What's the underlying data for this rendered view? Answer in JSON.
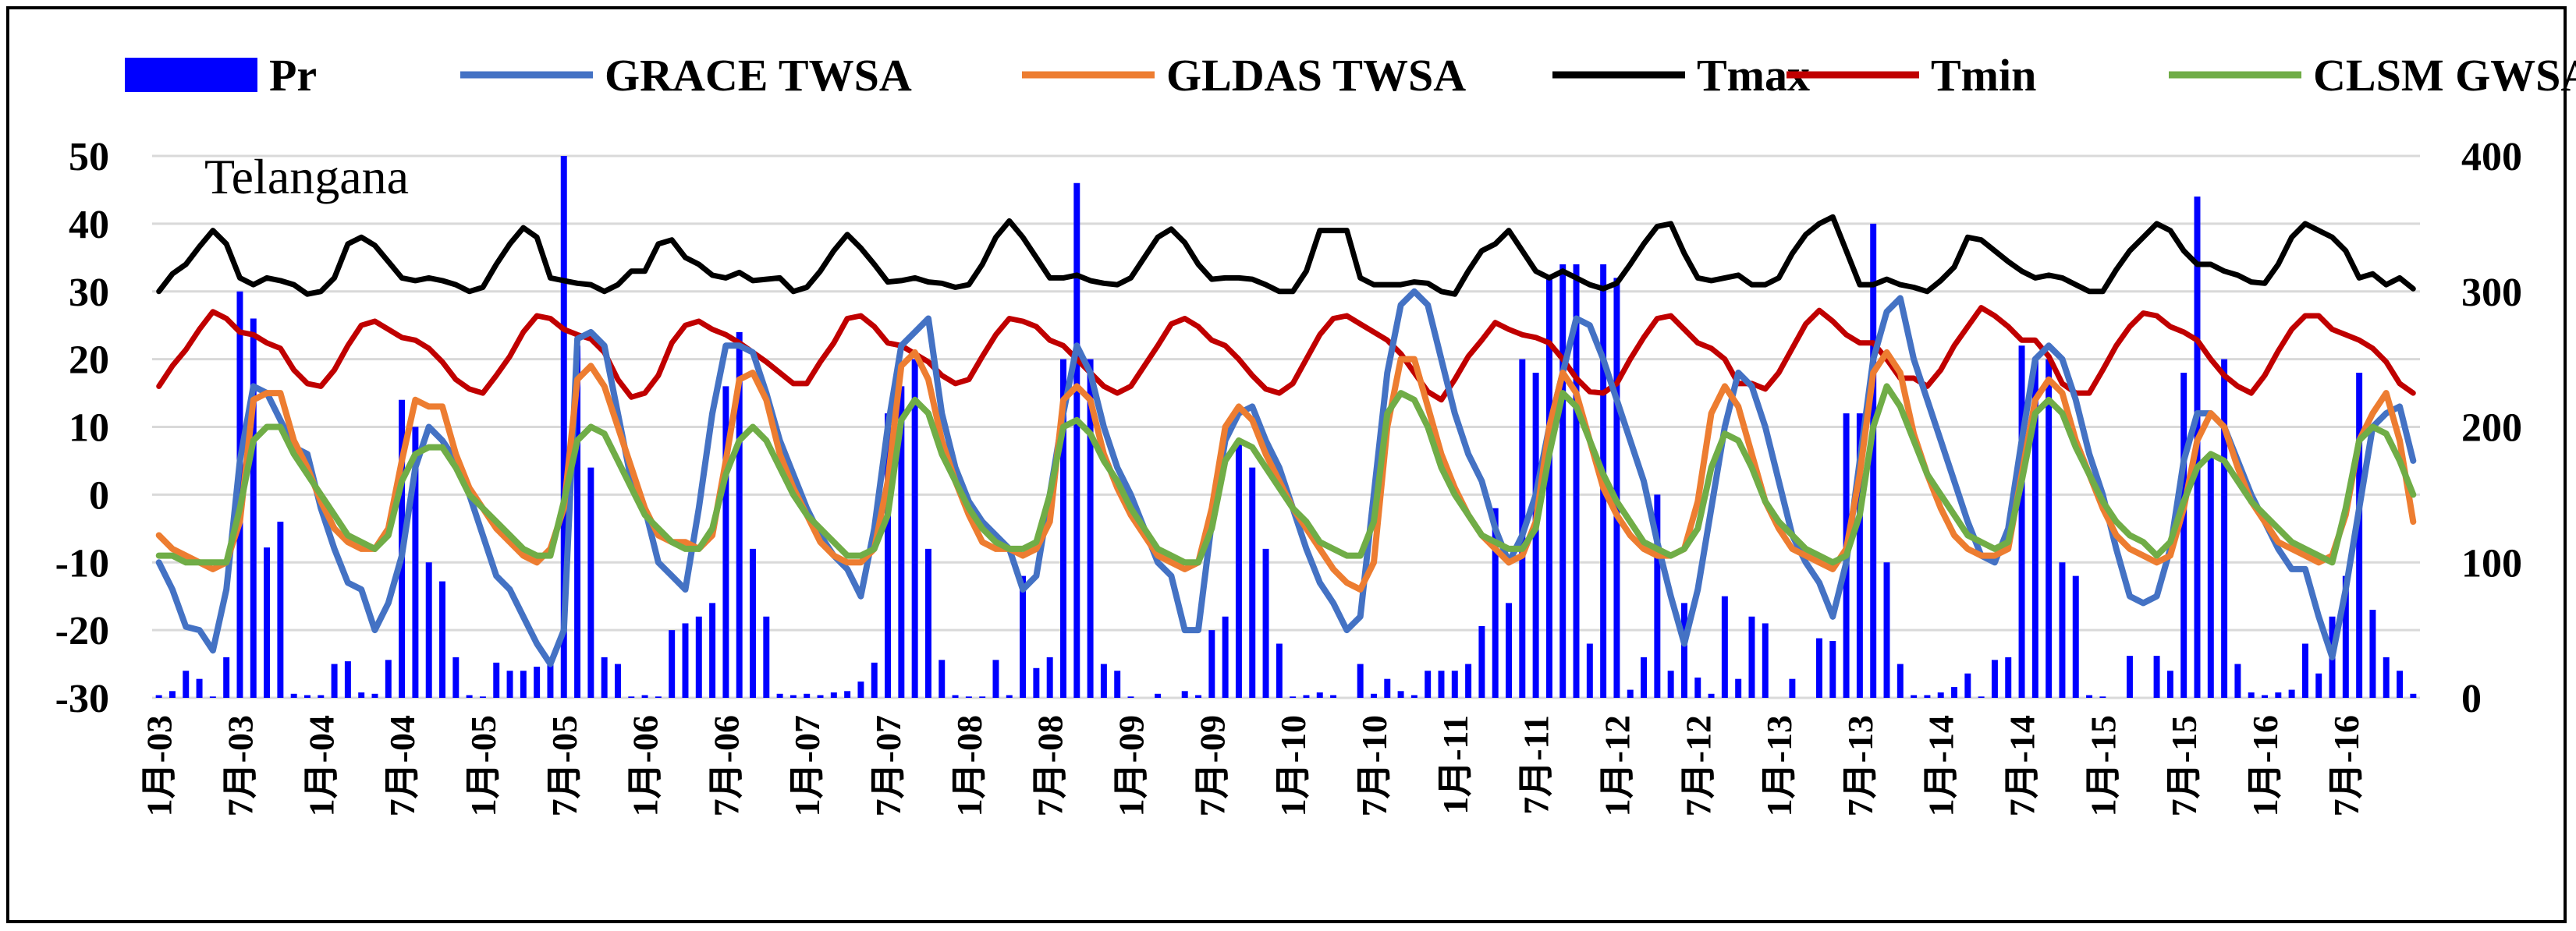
{
  "chart_data": {
    "type": "combo-bar-line",
    "title": "Telangana",
    "legend": {
      "position": "top",
      "entries": [
        {
          "key": "pr",
          "label": "Pr",
          "kind": "bar",
          "color": "#0000ff"
        },
        {
          "key": "grace",
          "label": "GRACE TWSA",
          "kind": "line",
          "color": "#4472c4"
        },
        {
          "key": "gldas",
          "label": "GLDAS TWSA",
          "kind": "line",
          "color": "#ed7d31"
        },
        {
          "key": "tmax",
          "label": "Tmax",
          "kind": "line",
          "color": "#000000"
        },
        {
          "key": "tmin",
          "label": "Tmin",
          "kind": "line",
          "color": "#c00000"
        },
        {
          "key": "clsm",
          "label": "CLSM GWSA",
          "kind": "line",
          "color": "#70ad47"
        }
      ]
    },
    "y_left": {
      "min": -30,
      "max": 50,
      "ticks": [
        "50",
        "40",
        "30",
        "20",
        "10",
        "0",
        "-10",
        "-20",
        "-30"
      ],
      "grid": true
    },
    "y_right": {
      "min": 0,
      "max": 400,
      "ticks": [
        "400",
        "300",
        "200",
        "100",
        "0"
      ]
    },
    "x_tick_labels": [
      "1月-03",
      "7月-03",
      "1月-04",
      "7月-04",
      "1月-05",
      "7月-05",
      "1月-06",
      "7月-06",
      "1月-07",
      "7月-07",
      "1月-08",
      "7月-08",
      "1月-09",
      "7月-09",
      "1月-10",
      "7月-10",
      "1月-11",
      "7月-11",
      "1月-12",
      "7月-12",
      "1月-13",
      "7月-13",
      "1月-14",
      "7月-14",
      "1月-15",
      "7月-15",
      "1月-16",
      "7月-16"
    ],
    "n_months": 168,
    "start_month": "2003-01",
    "series": {
      "pr": [
        2,
        5,
        20,
        14,
        1,
        30,
        300,
        280,
        111,
        130,
        3,
        2,
        2,
        25,
        27,
        4,
        3,
        28,
        220,
        200,
        100,
        86,
        30,
        2,
        1,
        26,
        20,
        20,
        23,
        30,
        400,
        260,
        170,
        30,
        25,
        1,
        2,
        1,
        50,
        55,
        60,
        70,
        230,
        270,
        110,
        60,
        3,
        2,
        3,
        2,
        4,
        5,
        12,
        26,
        210,
        230,
        250,
        110,
        28,
        2,
        1,
        1,
        28,
        2,
        90,
        22,
        30,
        250,
        380,
        250,
        25,
        20,
        1,
        0,
        3,
        0,
        5,
        2,
        50,
        60,
        190,
        170,
        110,
        40,
        1,
        2,
        4,
        2,
        0,
        25,
        3,
        14,
        5,
        2,
        20,
        20,
        20,
        25,
        53,
        140,
        70,
        250,
        240,
        310,
        320,
        320,
        40,
        320,
        310,
        6,
        30,
        150,
        20,
        70,
        15,
        3,
        75,
        14,
        60,
        55,
        0,
        14,
        0,
        44,
        42,
        210,
        210,
        350,
        100,
        25,
        2,
        2,
        4,
        8,
        18,
        1,
        28,
        30,
        260,
        250,
        250,
        100,
        90,
        2,
        1,
        0,
        31,
        0,
        31,
        20,
        240,
        370,
        180,
        250,
        25,
        4,
        2,
        4,
        6,
        40,
        18,
        60,
        90,
        240,
        65,
        30,
        20,
        3
      ],
      "grace": [
        -10,
        -14,
        -19.5,
        -20,
        -23,
        -14,
        5,
        16,
        15,
        11,
        7,
        6,
        -2,
        -8,
        -13,
        -14,
        -20,
        -16,
        -9,
        4,
        10,
        8,
        5,
        0,
        -6,
        -12,
        -14,
        -18,
        -22,
        -25,
        -20,
        23,
        24,
        22,
        12,
        2,
        -2,
        -10,
        -12,
        -14,
        -2,
        12,
        22,
        22,
        21,
        15,
        8,
        3,
        -2,
        -6,
        -9,
        -11,
        -15,
        -5,
        10,
        22,
        24,
        26,
        12,
        4,
        -1,
        -4,
        -6,
        -8,
        -14,
        -12,
        0,
        12,
        22,
        18,
        10,
        4,
        0,
        -5,
        -10,
        -12,
        -20,
        -20,
        -4,
        8,
        12,
        13,
        8,
        4,
        -2,
        -8,
        -13,
        -16,
        -20,
        -18,
        0,
        18,
        28,
        30,
        28,
        20,
        12,
        6,
        2,
        -5,
        -10,
        -6,
        0,
        10,
        18,
        26,
        25,
        20,
        14,
        8,
        2,
        -7,
        -15,
        -22,
        -14,
        -2,
        10,
        18,
        16,
        10,
        2,
        -6,
        -10,
        -13,
        -18,
        -10,
        5,
        20,
        27,
        29,
        20,
        14,
        8,
        2,
        -4,
        -9,
        -10,
        -5,
        8,
        20,
        22,
        20,
        14,
        6,
        0,
        -8,
        -15,
        -16,
        -15,
        -8,
        5,
        12,
        12,
        10,
        5,
        0,
        -4,
        -8,
        -11,
        -11,
        -18,
        -24,
        -14,
        -2,
        10,
        12,
        13,
        5
      ],
      "gldas": [
        -6,
        -8,
        -9,
        -10,
        -11,
        -10,
        -4,
        14,
        15,
        15,
        8,
        4,
        -1,
        -5,
        -7,
        -8,
        -8,
        -5,
        5,
        14,
        13,
        13,
        6,
        1,
        -2,
        -5,
        -7,
        -9,
        -10,
        -8,
        -2,
        17,
        19,
        16,
        10,
        4,
        -2,
        -6,
        -7,
        -7,
        -8,
        -6,
        5,
        17,
        18,
        14,
        6,
        1,
        -3,
        -7,
        -9,
        -10,
        -10,
        -8,
        2,
        19,
        21,
        17,
        8,
        2,
        -3,
        -7,
        -8,
        -8,
        -9,
        -8,
        -4,
        14,
        16,
        14,
        6,
        1,
        -3,
        -6,
        -9,
        -10,
        -11,
        -10,
        -2,
        10,
        13,
        11,
        6,
        2,
        -2,
        -5,
        -8,
        -11,
        -13,
        -14,
        -10,
        10,
        20,
        20,
        13,
        6,
        1,
        -3,
        -6,
        -8,
        -10,
        -9,
        -4,
        10,
        18,
        15,
        8,
        1,
        -3,
        -6,
        -8,
        -9,
        -9,
        -8,
        -1,
        12,
        16,
        13,
        6,
        -1,
        -5,
        -8,
        -9,
        -10,
        -11,
        -8,
        3,
        18,
        21,
        18,
        9,
        3,
        -2,
        -6,
        -8,
        -9,
        -9,
        -8,
        3,
        14,
        17,
        15,
        8,
        3,
        -2,
        -6,
        -8,
        -9,
        -10,
        -9,
        -2,
        8,
        12,
        10,
        4,
        -1,
        -4,
        -7,
        -8,
        -9,
        -10,
        -9,
        -3,
        8,
        12,
        15,
        8,
        -4
      ],
      "tmax": [
        300,
        313,
        320,
        333,
        345,
        335,
        310,
        305,
        310,
        308,
        305,
        298,
        300,
        310,
        335,
        340,
        334,
        322,
        310,
        308,
        310,
        308,
        305,
        300,
        303,
        320,
        335,
        347,
        340,
        310,
        308,
        306,
        305,
        300,
        305,
        315,
        315,
        335,
        338,
        325,
        320,
        312,
        310,
        314,
        308,
        309,
        310,
        300,
        303,
        315,
        330,
        342,
        332,
        320,
        307,
        308,
        310,
        307,
        306,
        303,
        305,
        320,
        340,
        352,
        340,
        325,
        310,
        310,
        312,
        308,
        306,
        305,
        310,
        325,
        340,
        346,
        336,
        320,
        309,
        310,
        310,
        309,
        305,
        300,
        300,
        315,
        345,
        345,
        345,
        310,
        305,
        305,
        305,
        307,
        306,
        300,
        298,
        315,
        330,
        335,
        345,
        330,
        315,
        310,
        315,
        310,
        305,
        302,
        306,
        320,
        335,
        348,
        350,
        328,
        310,
        308,
        310,
        312,
        305,
        305,
        310,
        328,
        342,
        350,
        355,
        330,
        305,
        305,
        309,
        305,
        303,
        300,
        308,
        318,
        340,
        338,
        330,
        322,
        315,
        310,
        312,
        310,
        305,
        300,
        300,
        316,
        330,
        340,
        350,
        345,
        330,
        320,
        320,
        315,
        312,
        307,
        306,
        320,
        340,
        350,
        345,
        340,
        330,
        310,
        313,
        305,
        310,
        302
      ],
      "tmin": [
        230,
        245,
        257,
        272,
        285,
        280,
        270,
        268,
        262,
        258,
        242,
        232,
        230,
        242,
        260,
        275,
        278,
        272,
        266,
        264,
        258,
        248,
        235,
        228,
        225,
        238,
        252,
        270,
        282,
        280,
        272,
        268,
        265,
        255,
        235,
        222,
        225,
        238,
        262,
        275,
        278,
        272,
        268,
        262,
        255,
        248,
        240,
        232,
        232,
        248,
        262,
        280,
        282,
        274,
        262,
        260,
        254,
        248,
        238,
        232,
        235,
        252,
        268,
        280,
        278,
        274,
        264,
        260,
        250,
        240,
        230,
        225,
        230,
        245,
        260,
        276,
        280,
        274,
        264,
        260,
        250,
        238,
        228,
        225,
        232,
        250,
        268,
        280,
        282,
        276,
        270,
        264,
        254,
        240,
        226,
        220,
        235,
        252,
        264,
        277,
        272,
        268,
        266,
        262,
        250,
        236,
        226,
        225,
        232,
        250,
        266,
        280,
        282,
        272,
        262,
        258,
        250,
        232,
        232,
        228,
        240,
        258,
        276,
        286,
        278,
        268,
        262,
        262,
        250,
        236,
        236,
        230,
        242,
        260,
        274,
        288,
        282,
        274,
        264,
        264,
        252,
        232,
        225,
        225,
        242,
        260,
        274,
        284,
        282,
        274,
        270,
        264,
        250,
        238,
        230,
        225,
        238,
        256,
        272,
        282,
        282,
        272,
        268,
        264,
        258,
        248,
        232,
        225
      ],
      "clsm": [
        -9,
        -9,
        -10,
        -10,
        -10,
        -10,
        -2,
        8,
        10,
        10,
        6,
        3,
        0,
        -3,
        -6,
        -7,
        -8,
        -6,
        2,
        6,
        7,
        7,
        4,
        0,
        -2,
        -4,
        -6,
        -8,
        -9,
        -9,
        -1,
        8,
        10,
        9,
        5,
        1,
        -3,
        -5,
        -7,
        -8,
        -8,
        -5,
        3,
        8,
        10,
        8,
        4,
        0,
        -3,
        -5,
        -7,
        -9,
        -9,
        -8,
        -3,
        11,
        14,
        12,
        6,
        2,
        -2,
        -5,
        -7,
        -8,
        -8,
        -7,
        0,
        10,
        11,
        9,
        5,
        2,
        -2,
        -5,
        -8,
        -9,
        -10,
        -10,
        -5,
        5,
        8,
        7,
        4,
        1,
        -2,
        -4,
        -7,
        -8,
        -9,
        -9,
        -4,
        12,
        15,
        14,
        10,
        4,
        0,
        -3,
        -6,
        -7,
        -8,
        -8,
        -5,
        6,
        15,
        13,
        8,
        3,
        -1,
        -4,
        -7,
        -8,
        -9,
        -8,
        -5,
        4,
        9,
        8,
        4,
        -1,
        -4,
        -6,
        -8,
        -9,
        -10,
        -9,
        -3,
        10,
        16,
        13,
        8,
        3,
        0,
        -3,
        -6,
        -7,
        -8,
        -7,
        2,
        12,
        14,
        12,
        7,
        3,
        -1,
        -4,
        -6,
        -7,
        -9,
        -7,
        -1,
        4,
        6,
        5,
        2,
        -1,
        -3,
        -5,
        -7,
        -8,
        -9,
        -10,
        -2,
        8,
        10,
        9,
        5,
        0
      ]
    }
  }
}
